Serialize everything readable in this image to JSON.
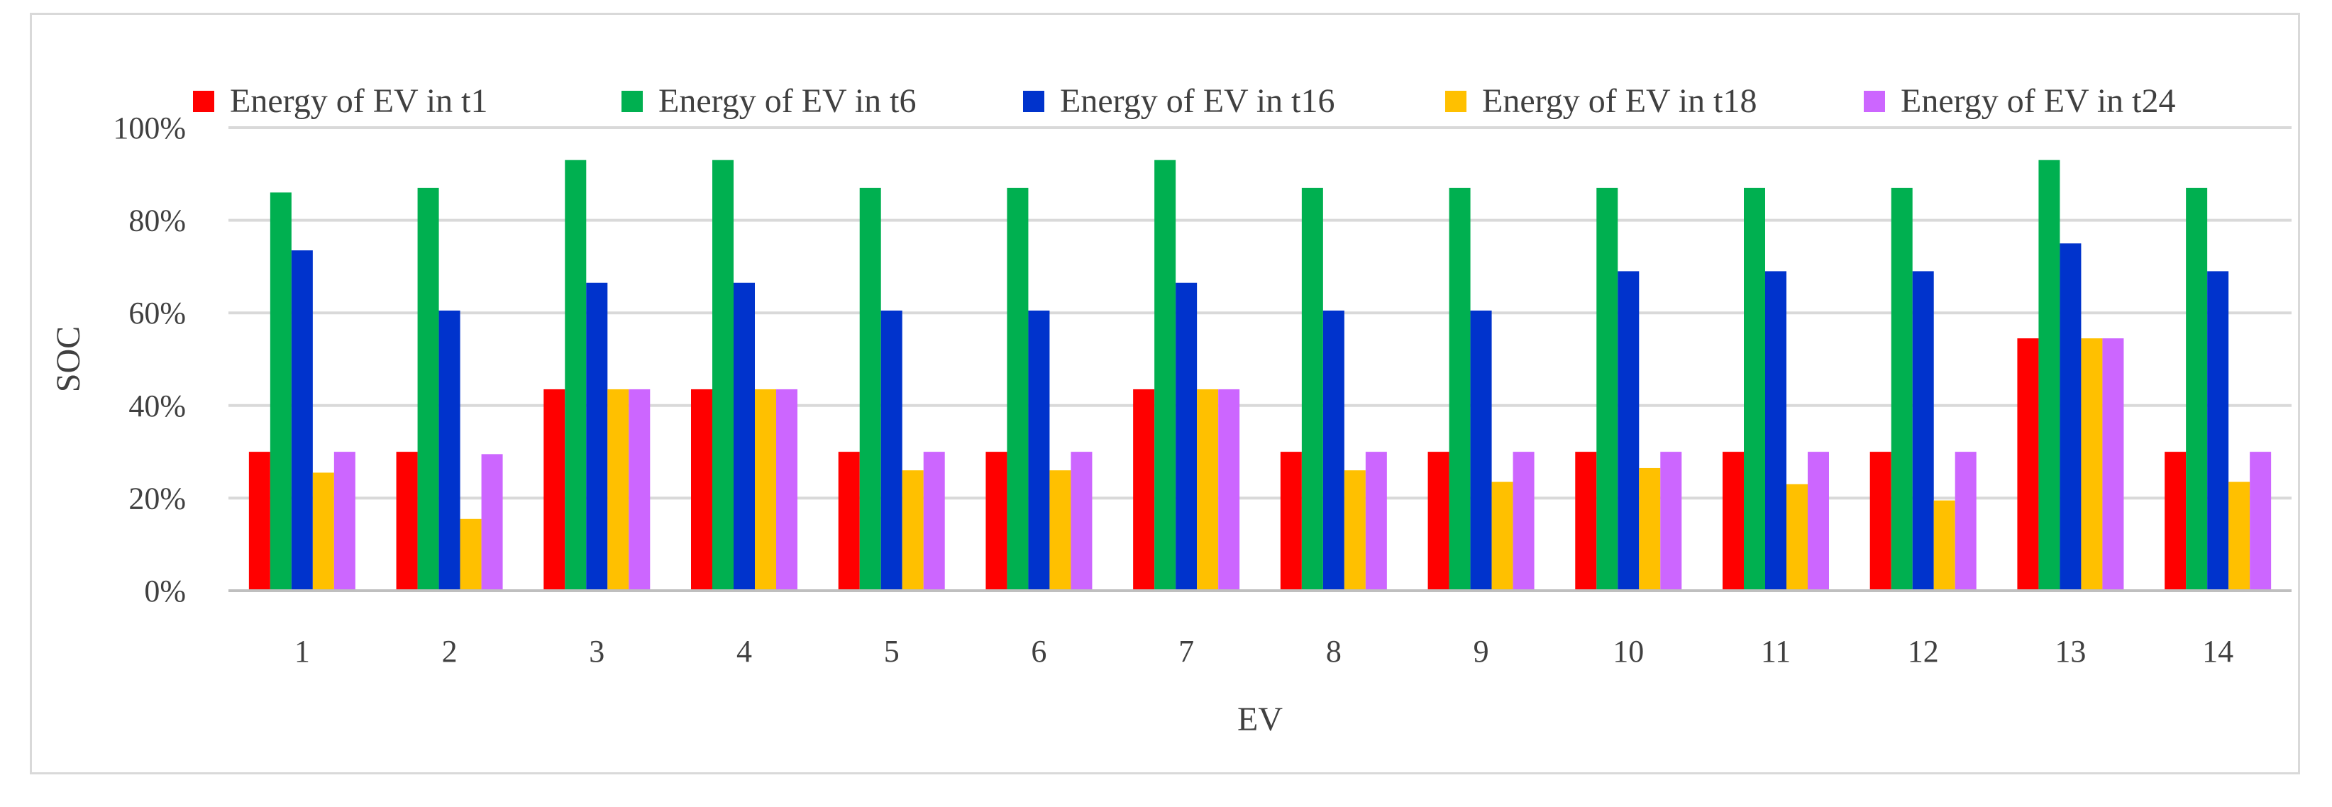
{
  "chart_data": {
    "type": "bar",
    "title": "",
    "xlabel": "EV",
    "ylabel": "SOC",
    "ylim": [
      0,
      1
    ],
    "yticks": [
      "0%",
      "20%",
      "40%",
      "60%",
      "80%",
      "100%"
    ],
    "ytick_values": [
      0,
      0.2,
      0.4,
      0.6,
      0.8,
      1.0
    ],
    "grid": true,
    "legend_position": "top",
    "categories": [
      "1",
      "2",
      "3",
      "4",
      "5",
      "6",
      "7",
      "8",
      "9",
      "10",
      "11",
      "12",
      "13",
      "14"
    ],
    "series": [
      {
        "name": "Energy of EV in t1",
        "color": "#ff0000",
        "values": [
          0.3,
          0.3,
          0.435,
          0.435,
          0.3,
          0.3,
          0.435,
          0.3,
          0.3,
          0.3,
          0.3,
          0.3,
          0.545,
          0.3
        ]
      },
      {
        "name": "Energy of EV in t6",
        "color": "#00b050",
        "values": [
          0.86,
          0.87,
          0.93,
          0.93,
          0.87,
          0.87,
          0.93,
          0.87,
          0.87,
          0.87,
          0.87,
          0.87,
          0.93,
          0.87
        ]
      },
      {
        "name": "Energy of EV in t16",
        "color": "#0033cc",
        "values": [
          0.735,
          0.605,
          0.665,
          0.665,
          0.605,
          0.605,
          0.665,
          0.605,
          0.605,
          0.69,
          0.69,
          0.69,
          0.75,
          0.69
        ]
      },
      {
        "name": "Energy of EV in t18",
        "color": "#ffc000",
        "values": [
          0.255,
          0.155,
          0.435,
          0.435,
          0.26,
          0.26,
          0.435,
          0.26,
          0.235,
          0.265,
          0.23,
          0.195,
          0.545,
          0.235
        ]
      },
      {
        "name": "Energy of EV in t24",
        "color": "#cc66ff",
        "values": [
          0.3,
          0.295,
          0.435,
          0.435,
          0.3,
          0.3,
          0.435,
          0.3,
          0.3,
          0.3,
          0.3,
          0.3,
          0.545,
          0.3
        ]
      }
    ]
  }
}
